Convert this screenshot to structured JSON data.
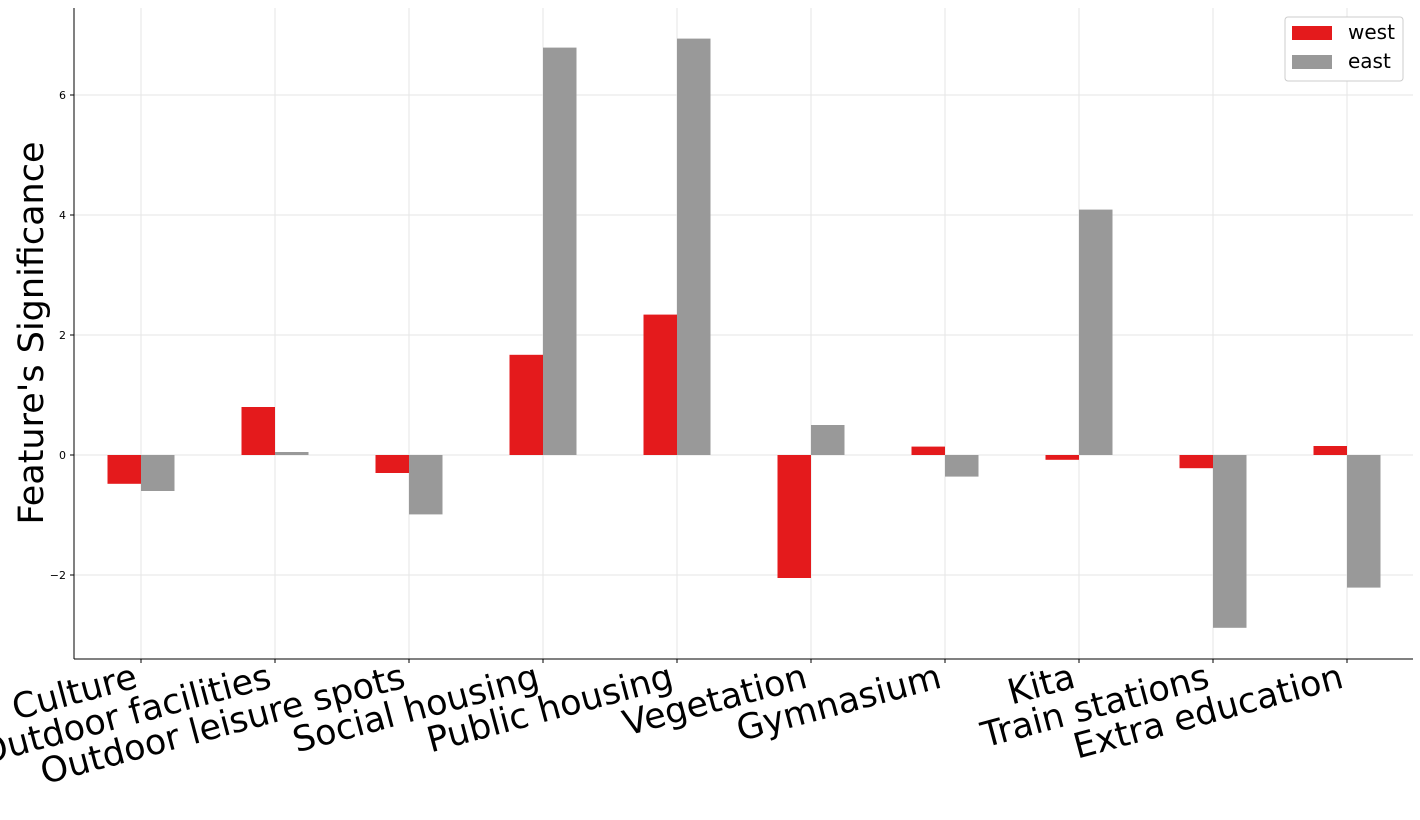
{
  "chart_data": {
    "type": "bar",
    "title": "",
    "xlabel": "",
    "ylabel": "Feature's Significance",
    "categories": [
      "Culture",
      "Outdoor facilities",
      "Outdoor leisure spots",
      "Social housing",
      "Public housing",
      "Vegetation",
      "Gymnasium",
      "Kita",
      "Train stations",
      "Extra education"
    ],
    "series": [
      {
        "name": "west",
        "color": "#e41a1c",
        "values": [
          -0.48,
          0.8,
          -0.3,
          1.67,
          2.34,
          -2.05,
          0.14,
          -0.08,
          -0.22,
          0.15
        ]
      },
      {
        "name": "east",
        "color": "#999999",
        "values": [
          -0.6,
          0.05,
          -0.99,
          6.79,
          6.94,
          0.5,
          -0.36,
          4.09,
          -2.88,
          -2.21
        ]
      }
    ],
    "ylim": [
      -3.4,
      7.45
    ],
    "yticks": [
      -2,
      0,
      2,
      4,
      6
    ],
    "ytick_labels": [
      "−2",
      "0",
      "2",
      "4",
      "6"
    ],
    "grid": true,
    "legend_position": "top-right"
  }
}
